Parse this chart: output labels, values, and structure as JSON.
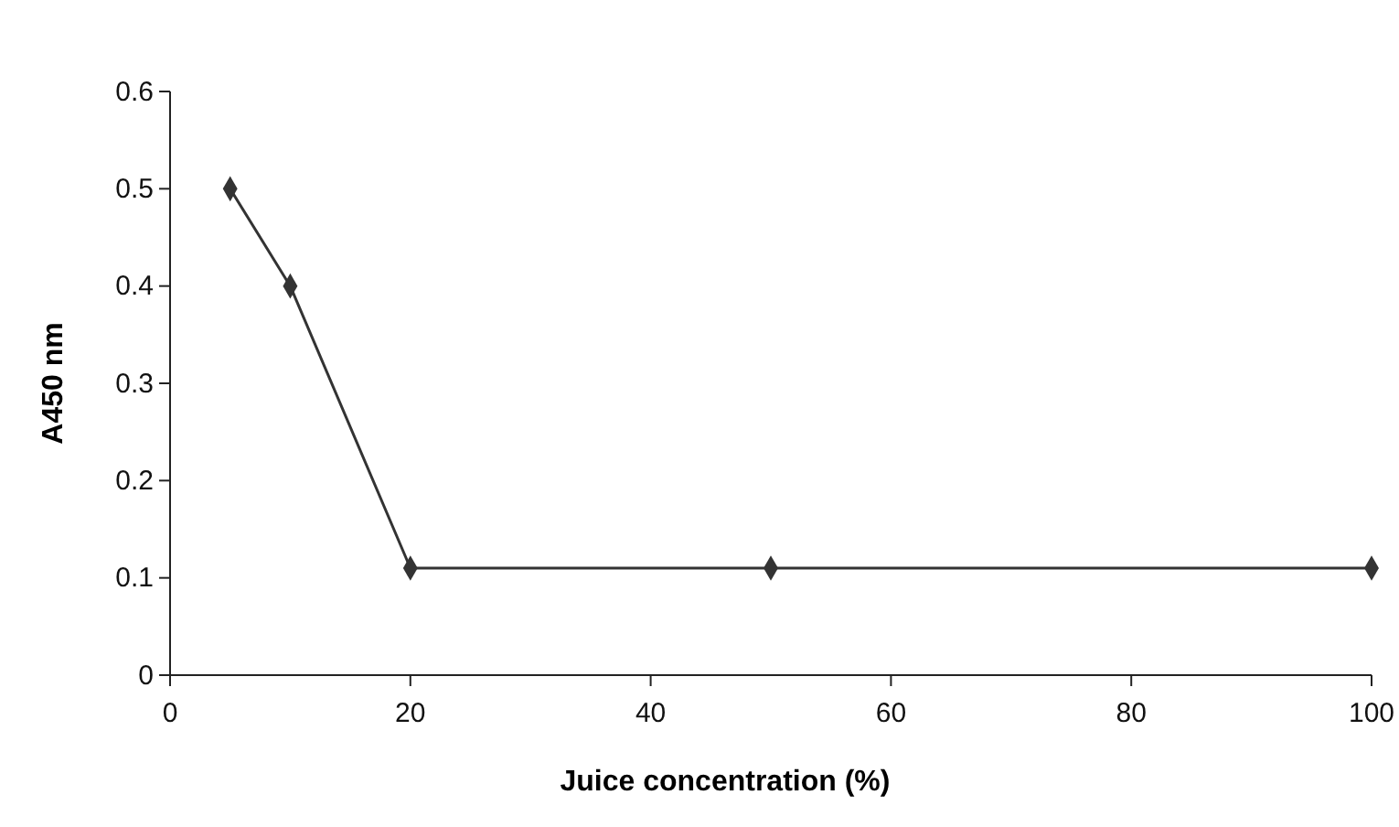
{
  "chart_data": {
    "type": "line",
    "xlabel": "Juice concentration (%)",
    "ylabel": "A450 nm",
    "x": [
      5,
      10,
      20,
      50,
      100
    ],
    "series": [
      {
        "color": "#333333",
        "values": [
          0.5,
          0.4,
          0.11,
          0.11,
          0.11
        ]
      }
    ],
    "xlim": [
      0,
      100
    ],
    "xticks": [
      0,
      20,
      40,
      60,
      80,
      100
    ],
    "ylim": [
      0,
      0.6
    ],
    "yticks": [
      0,
      0.1,
      0.2,
      0.3,
      0.4,
      0.5,
      0.6
    ],
    "marker": "diamond",
    "line_style": "solid",
    "grid": false
  }
}
